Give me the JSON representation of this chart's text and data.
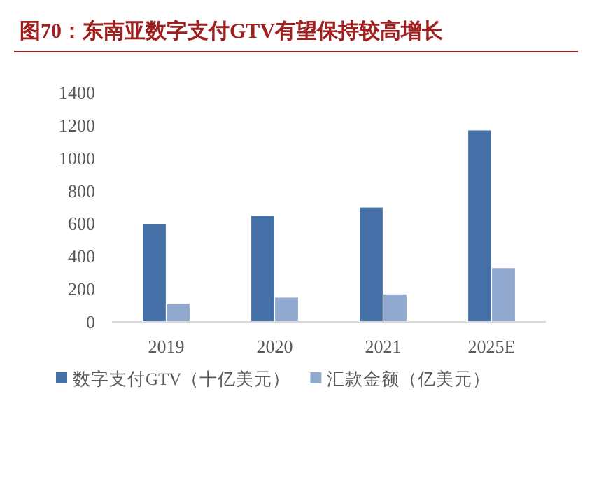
{
  "chart_data": {
    "type": "bar",
    "title": "图70：东南亚数字支付GTV有望保持较高增长",
    "categories": [
      "2019",
      "2020",
      "2021",
      "2025E"
    ],
    "series": [
      {
        "name": "数字支付GTV（十亿美元）",
        "color": "#4470a7",
        "values": [
          600,
          650,
          700,
          1170
        ]
      },
      {
        "name": "汇款金额（亿美元）",
        "color": "#91a9cf",
        "values": [
          110,
          150,
          170,
          330
        ]
      }
    ],
    "ylim": [
      0,
      1400
    ],
    "yticks": [
      0,
      200,
      400,
      600,
      800,
      1000,
      1200,
      1400
    ],
    "legend": "bottom"
  }
}
